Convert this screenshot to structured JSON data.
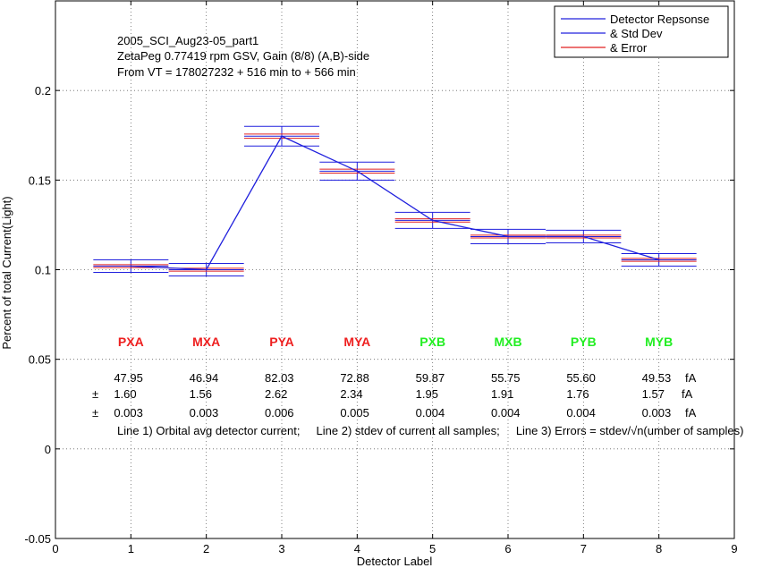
{
  "chart_data": {
    "type": "line",
    "header_lines": [
      "2005_SCI_Aug23-05_part1",
      "ZetaPeg 0.77419 rpm GSV, Gain (8/8) (A,B)-side",
      "From VT = 178027232 + 516 min to + 566 min"
    ],
    "xlabel": "Detector Label",
    "ylabel": "Percent of total Current(Light)",
    "xlim": [
      0,
      9
    ],
    "ylim": [
      -0.05,
      0.25
    ],
    "xticks": [
      0,
      1,
      2,
      3,
      4,
      5,
      6,
      7,
      8,
      9
    ],
    "yticks": [
      {
        "v": -0.05,
        "label": "-0.05"
      },
      {
        "v": 0,
        "label": "0"
      },
      {
        "v": 0.05,
        "label": "0.05"
      },
      {
        "v": 0.1,
        "label": "0.1"
      },
      {
        "v": 0.15,
        "label": "0.15"
      },
      {
        "v": 0.2,
        "label": "0.2"
      }
    ],
    "grid": true,
    "legend": {
      "position": "top-right",
      "entries": [
        {
          "label": "Detector Repsonse",
          "color": "#2020dd"
        },
        {
          "label": "& Std Dev",
          "color": "#2020dd"
        },
        {
          "label": "& Error",
          "color": "#e02020"
        }
      ]
    },
    "series": [
      {
        "name": "Detector Repsonse",
        "color": "#2020dd",
        "x": [
          1,
          2,
          3,
          4,
          5,
          6,
          7,
          8
        ],
        "y": [
          0.102,
          0.1,
          0.1745,
          0.155,
          0.1275,
          0.1185,
          0.1185,
          0.1055
        ],
        "stdev": [
          0.0035,
          0.0035,
          0.0055,
          0.005,
          0.0045,
          0.004,
          0.0035,
          0.0035
        ],
        "error": [
          0.0008,
          0.0008,
          0.0012,
          0.0011,
          0.0009,
          0.0008,
          0.0008,
          0.0008
        ]
      }
    ],
    "detectors": [
      {
        "label": "PXA",
        "color": "#ee2020",
        "current": "47.95",
        "stdev": "1.60",
        "error": "0.003"
      },
      {
        "label": "MXA",
        "color": "#ee2020",
        "current": "46.94",
        "stdev": "1.56",
        "error": "0.003"
      },
      {
        "label": "PYA",
        "color": "#ee2020",
        "current": "82.03",
        "stdev": "2.62",
        "error": "0.006"
      },
      {
        "label": "MYA",
        "color": "#ee2020",
        "current": "72.88",
        "stdev": "2.34",
        "error": "0.005"
      },
      {
        "label": "PXB",
        "color": "#22ee22",
        "current": "59.87",
        "stdev": "1.95",
        "error": "0.004"
      },
      {
        "label": "MXB",
        "color": "#22ee22",
        "current": "55.75",
        "stdev": "1.91",
        "error": "0.004"
      },
      {
        "label": "PYB",
        "color": "#22ee22",
        "current": "55.60",
        "stdev": "1.76",
        "error": "0.004"
      },
      {
        "label": "MYB",
        "color": "#22ee22",
        "current": "49.53",
        "stdev": "1.57",
        "error": "0.003"
      }
    ],
    "unit": "fA",
    "pm_symbol": "±",
    "footnote": "Line 1) Orbital avg detector current;     Line 2) stdev of current all samples;     Line 3) Errors = stdev/√n(umber of samples)"
  }
}
